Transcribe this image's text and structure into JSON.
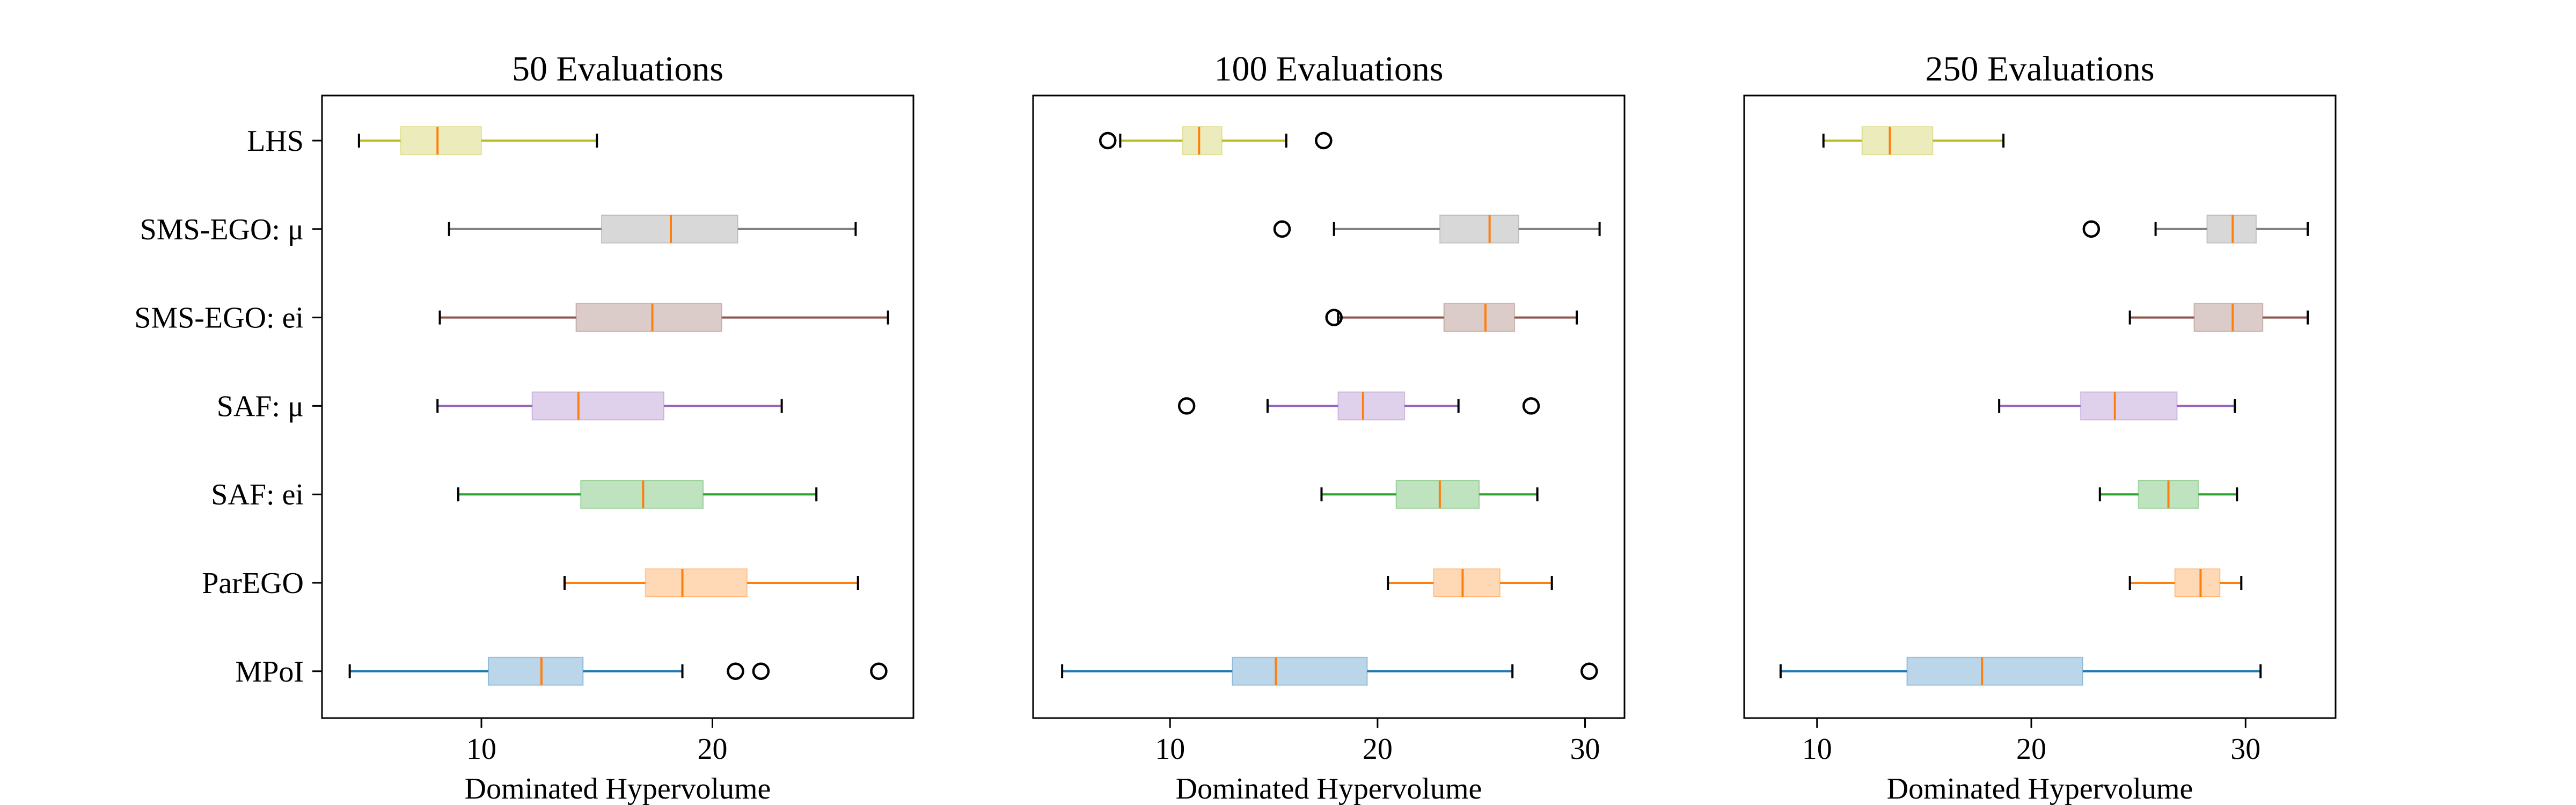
{
  "chart_data": {
    "type": "boxplot",
    "orientation": "horizontal",
    "xlabel": "Dominated Hypervolume",
    "categories": [
      "LHS",
      "SMS-EGO: μ",
      "SMS-EGO: ei",
      "SAF: μ",
      "SAF: ei",
      "ParEGO",
      "MPoI"
    ],
    "colors": {
      "LHS": "#bcbd22",
      "SMS-EGO: μ": "#7f7f7f",
      "SMS-EGO: ei": "#8c564b",
      "SAF: μ": "#9467bd",
      "SAF: ei": "#2ca02c",
      "ParEGO": "#ff7f0e",
      "MPoI": "#1f77b4"
    },
    "median_color": "#ff7f0e",
    "panels": [
      {
        "title": "50 Evaluations",
        "xlim": [
          3.1,
          28.7
        ],
        "xticks": [
          10,
          20
        ],
        "boxes": [
          {
            "category": "LHS",
            "whislo": 4.7,
            "q1": 6.5,
            "med": 8.1,
            "q3": 10.0,
            "whishi": 15.0,
            "fliers": []
          },
          {
            "category": "SMS-EGO: μ",
            "whislo": 8.6,
            "q1": 15.2,
            "med": 18.2,
            "q3": 21.1,
            "whishi": 26.2,
            "fliers": []
          },
          {
            "category": "SMS-EGO: ei",
            "whislo": 8.2,
            "q1": 14.1,
            "med": 17.4,
            "q3": 20.4,
            "whishi": 27.6,
            "fliers": []
          },
          {
            "category": "SAF: μ",
            "whislo": 8.1,
            "q1": 12.2,
            "med": 14.2,
            "q3": 17.9,
            "whishi": 23.0,
            "fliers": []
          },
          {
            "category": "SAF: ei",
            "whislo": 9.0,
            "q1": 14.3,
            "med": 17.0,
            "q3": 19.6,
            "whishi": 24.5,
            "fliers": []
          },
          {
            "category": "ParEGO",
            "whislo": 13.6,
            "q1": 17.1,
            "med": 18.7,
            "q3": 21.5,
            "whishi": 26.3,
            "fliers": []
          },
          {
            "category": "MPoI",
            "whislo": 4.3,
            "q1": 10.3,
            "med": 12.6,
            "q3": 14.4,
            "whishi": 18.7,
            "fliers": [
              21.0,
              22.1,
              27.2
            ]
          }
        ]
      },
      {
        "title": "100 Evaluations",
        "xlim": [
          3.4,
          31.9
        ],
        "xticks": [
          10,
          20,
          30
        ],
        "boxes": [
          {
            "category": "LHS",
            "whislo": 7.6,
            "q1": 10.6,
            "med": 11.4,
            "q3": 12.5,
            "whishi": 15.6,
            "fliers": [
              7.0,
              17.4
            ]
          },
          {
            "category": "SMS-EGO: μ",
            "whislo": 17.9,
            "q1": 23.0,
            "med": 25.4,
            "q3": 26.8,
            "whishi": 30.7,
            "fliers": [
              15.4
            ]
          },
          {
            "category": "SMS-EGO: ei",
            "whislo": 18.1,
            "q1": 23.2,
            "med": 25.2,
            "q3": 26.6,
            "whishi": 29.6,
            "fliers": [
              17.9
            ]
          },
          {
            "category": "SAF: μ",
            "whislo": 14.7,
            "q1": 18.1,
            "med": 19.3,
            "q3": 21.3,
            "whishi": 23.9,
            "fliers": [
              10.8,
              27.4
            ]
          },
          {
            "category": "SAF: ei",
            "whislo": 17.3,
            "q1": 20.9,
            "med": 23.0,
            "q3": 24.9,
            "whishi": 27.7,
            "fliers": []
          },
          {
            "category": "ParEGO",
            "whislo": 20.5,
            "q1": 22.7,
            "med": 24.1,
            "q3": 25.9,
            "whishi": 28.4,
            "fliers": []
          },
          {
            "category": "MPoI",
            "whislo": 4.8,
            "q1": 13.0,
            "med": 15.1,
            "q3": 19.5,
            "whishi": 26.5,
            "fliers": [
              30.2
            ]
          }
        ]
      },
      {
        "title": "250 Evaluations",
        "xlim": [
          6.6,
          34.2
        ],
        "xticks": [
          10,
          20,
          30
        ],
        "boxes": [
          {
            "category": "LHS",
            "whislo": 10.3,
            "q1": 12.1,
            "med": 13.4,
            "q3": 15.4,
            "whishi": 18.7,
            "fliers": []
          },
          {
            "category": "SMS-EGO: μ",
            "whislo": 25.8,
            "q1": 28.2,
            "med": 29.4,
            "q3": 30.5,
            "whishi": 32.9,
            "fliers": [
              22.8
            ]
          },
          {
            "category": "SMS-EGO: ei",
            "whislo": 24.6,
            "q1": 27.6,
            "med": 29.4,
            "q3": 30.8,
            "whishi": 32.9,
            "fliers": []
          },
          {
            "category": "SAF: μ",
            "whislo": 18.5,
            "q1": 22.3,
            "med": 23.9,
            "q3": 26.8,
            "whishi": 29.5,
            "fliers": []
          },
          {
            "category": "SAF: ei",
            "whislo": 23.2,
            "q1": 25.0,
            "med": 26.4,
            "q3": 27.8,
            "whishi": 29.6,
            "fliers": []
          },
          {
            "category": "ParEGO",
            "whislo": 24.6,
            "q1": 26.7,
            "med": 27.9,
            "q3": 28.8,
            "whishi": 29.8,
            "fliers": []
          },
          {
            "category": "MPoI",
            "whislo": 8.3,
            "q1": 14.2,
            "med": 17.7,
            "q3": 22.4,
            "whishi": 30.7,
            "fliers": []
          }
        ]
      }
    ]
  }
}
